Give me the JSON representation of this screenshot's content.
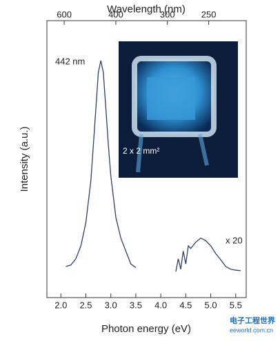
{
  "chart_data": {
    "type": "line",
    "x_label": "Photon energy (eV)",
    "y_label": "Intensity (a.u.)",
    "x2_label": "Wavelength (nm)",
    "xlim": [
      1.72,
      5.71
    ],
    "xticks": [
      {
        "value": 2,
        "label": "2.0"
      },
      2.5,
      {
        "value": 3,
        "label": "3.0"
      },
      3.5,
      {
        "value": 4,
        "label": "4.0"
      },
      4.5,
      {
        "value": 5,
        "label": "5.0"
      },
      5.5
    ],
    "x2ticks": [
      600,
      400,
      300,
      250
    ],
    "ylim": [
      -0.45,
      4.9
    ],
    "series": [
      {
        "color": "#2b3f6b",
        "x": [
          2.1,
          2.2,
          2.3,
          2.4,
          2.5,
          2.6,
          2.65,
          2.7,
          2.75,
          2.8,
          2.85,
          2.9,
          2.95,
          3.0,
          3.1,
          3.2,
          3.3,
          3.4,
          3.5
        ],
        "values": [
          0.15,
          0.18,
          0.3,
          0.55,
          1.0,
          1.8,
          2.5,
          3.2,
          3.9,
          4.13,
          3.9,
          3.2,
          2.5,
          1.9,
          1.1,
          0.7,
          0.45,
          0.2,
          0.13
        ]
      },
      {
        "color": "#2b3f6b",
        "x": [
          4.3,
          4.35,
          4.4,
          4.45,
          4.5,
          4.55,
          4.6,
          4.7,
          4.8,
          4.9,
          5.0,
          5.1,
          5.2,
          5.3,
          5.4,
          5.5,
          5.6
        ],
        "values": [
          0.05,
          0.3,
          0.1,
          0.45,
          0.2,
          0.55,
          0.5,
          0.62,
          0.7,
          0.65,
          0.55,
          0.4,
          0.28,
          0.15,
          0.1,
          0.08,
          0.07
        ]
      }
    ],
    "annotations": [
      "442 nm",
      "x 20",
      "2 x 2 mm²"
    ],
    "watermark": [
      "电子工程世界",
      "eeworld.com.cn"
    ]
  }
}
